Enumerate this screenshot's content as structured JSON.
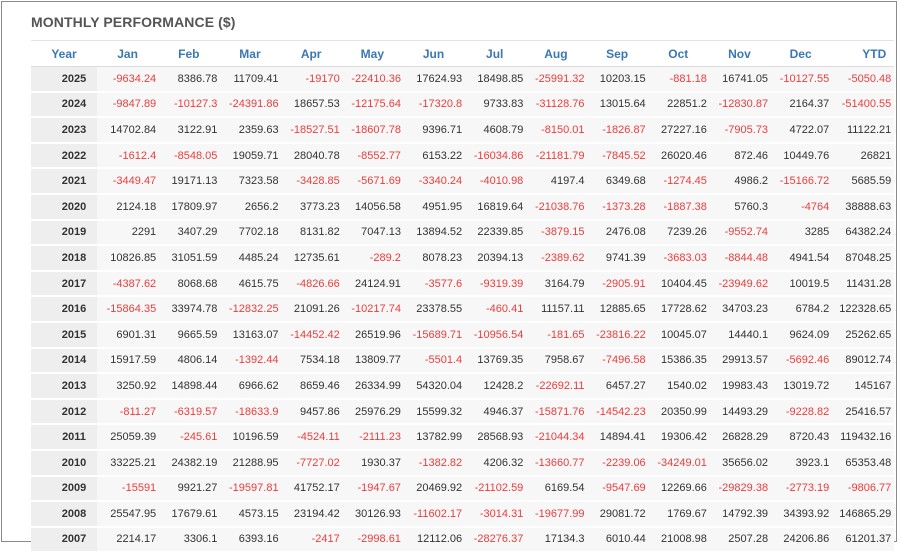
{
  "title": "MONTHLY PERFORMANCE ($)",
  "headers": [
    "Year",
    "Jan",
    "Feb",
    "Mar",
    "Apr",
    "May",
    "Jun",
    "Jul",
    "Aug",
    "Sep",
    "Oct",
    "Nov",
    "Dec",
    "YTD"
  ],
  "colors": {
    "header_text": "#3a78b4",
    "negative": "#ea3d3d",
    "positive": "#333333",
    "year_bg": "#eeeeee",
    "row_bg": "#f7f7f7"
  },
  "rows": [
    {
      "year": "2025",
      "values": [
        "-9634.24",
        "8386.78",
        "11709.41",
        "-19170",
        "-22410.36",
        "17624.93",
        "18498.85",
        "-25991.32",
        "10203.15",
        "-881.18",
        "16741.05",
        "-10127.55",
        "-5050.48"
      ]
    },
    {
      "year": "2024",
      "values": [
        "-9847.89",
        "-10127.3",
        "-24391.86",
        "18657.53",
        "-12175.64",
        "-17320.8",
        "9733.83",
        "-31128.76",
        "13015.64",
        "22851.2",
        "-12830.87",
        "2164.37",
        "-51400.55"
      ]
    },
    {
      "year": "2023",
      "values": [
        "14702.84",
        "3122.91",
        "2359.63",
        "-18527.51",
        "-18607.78",
        "9396.71",
        "4608.79",
        "-8150.01",
        "-1826.87",
        "27227.16",
        "-7905.73",
        "4722.07",
        "11122.21"
      ]
    },
    {
      "year": "2022",
      "values": [
        "-1612.4",
        "-8548.05",
        "19059.71",
        "28040.78",
        "-8552.77",
        "6153.22",
        "-16034.86",
        "-21181.79",
        "-7845.52",
        "26020.46",
        "872.46",
        "10449.76",
        "26821"
      ]
    },
    {
      "year": "2021",
      "values": [
        "-3449.47",
        "19171.13",
        "7323.58",
        "-3428.85",
        "-5671.69",
        "-3340.24",
        "-4010.98",
        "4197.4",
        "6349.68",
        "-1274.45",
        "4986.2",
        "-15166.72",
        "5685.59"
      ]
    },
    {
      "year": "2020",
      "values": [
        "2124.18",
        "17809.97",
        "2656.2",
        "3773.23",
        "14056.58",
        "4951.95",
        "16819.64",
        "-21038.76",
        "-1373.28",
        "-1887.38",
        "5760.3",
        "-4764",
        "38888.63"
      ]
    },
    {
      "year": "2019",
      "values": [
        "2291",
        "3407.29",
        "7702.18",
        "8131.82",
        "7047.13",
        "13894.52",
        "22339.85",
        "-3879.15",
        "2476.08",
        "7239.26",
        "-9552.74",
        "3285",
        "64382.24"
      ]
    },
    {
      "year": "2018",
      "values": [
        "10826.85",
        "31051.59",
        "4485.24",
        "12735.61",
        "-289.2",
        "8078.23",
        "20394.13",
        "-2389.62",
        "9741.39",
        "-3683.03",
        "-8844.48",
        "4941.54",
        "87048.25"
      ]
    },
    {
      "year": "2017",
      "values": [
        "-4387.62",
        "8068.68",
        "4615.75",
        "-4826.66",
        "24124.91",
        "-3577.6",
        "-9319.39",
        "3164.79",
        "-2905.91",
        "10404.45",
        "-23949.62",
        "10019.5",
        "11431.28"
      ]
    },
    {
      "year": "2016",
      "values": [
        "-15864.35",
        "33974.78",
        "-12832.25",
        "21091.26",
        "-10217.74",
        "23378.55",
        "-460.41",
        "11157.11",
        "12885.65",
        "17728.62",
        "34703.23",
        "6784.2",
        "122328.65"
      ]
    },
    {
      "year": "2015",
      "values": [
        "6901.31",
        "9665.59",
        "13163.07",
        "-14452.42",
        "26519.96",
        "-15689.71",
        "-10956.54",
        "-181.65",
        "-23816.22",
        "10045.07",
        "14440.1",
        "9624.09",
        "25262.65"
      ]
    },
    {
      "year": "2014",
      "values": [
        "15917.59",
        "4806.14",
        "-1392.44",
        "7534.18",
        "13809.77",
        "-5501.4",
        "13769.35",
        "7958.67",
        "-7496.58",
        "15386.35",
        "29913.57",
        "-5692.46",
        "89012.74"
      ]
    },
    {
      "year": "2013",
      "values": [
        "3250.92",
        "14898.44",
        "6966.62",
        "8659.46",
        "26334.99",
        "54320.04",
        "12428.2",
        "-22692.11",
        "6457.27",
        "1540.02",
        "19983.43",
        "13019.72",
        "145167"
      ]
    },
    {
      "year": "2012",
      "values": [
        "-811.27",
        "-6319.57",
        "-18633.9",
        "9457.86",
        "25976.29",
        "15599.32",
        "4946.37",
        "-15871.76",
        "-14542.23",
        "20350.99",
        "14493.29",
        "-9228.82",
        "25416.57"
      ]
    },
    {
      "year": "2011",
      "values": [
        "25059.39",
        "-245.61",
        "10196.59",
        "-4524.11",
        "-2111.23",
        "13782.99",
        "28568.93",
        "-21044.34",
        "14894.41",
        "19306.42",
        "26828.29",
        "8720.43",
        "119432.16"
      ]
    },
    {
      "year": "2010",
      "values": [
        "33225.21",
        "24382.19",
        "21288.95",
        "-7727.02",
        "1930.37",
        "-1382.82",
        "4206.32",
        "-13660.77",
        "-2239.06",
        "-34249.01",
        "35656.02",
        "3923.1",
        "65353.48"
      ]
    },
    {
      "year": "2009",
      "values": [
        "-15591",
        "9921.27",
        "-19597.81",
        "41752.17",
        "-1947.67",
        "20469.92",
        "-21102.59",
        "6169.54",
        "-9547.69",
        "12269.66",
        "-29829.38",
        "-2773.19",
        "-9806.77"
      ]
    },
    {
      "year": "2008",
      "values": [
        "25547.95",
        "17679.61",
        "4573.15",
        "23194.42",
        "30126.93",
        "-11602.17",
        "-3014.31",
        "-19677.99",
        "29081.72",
        "1769.67",
        "14792.39",
        "34393.92",
        "146865.29"
      ]
    },
    {
      "year": "2007",
      "values": [
        "2214.17",
        "3306.1",
        "6393.16",
        "-2417",
        "-2998.61",
        "12112.06",
        "-28276.37",
        "17134.3",
        "6010.44",
        "21008.98",
        "2507.28",
        "24206.86",
        "61201.37"
      ]
    }
  ]
}
